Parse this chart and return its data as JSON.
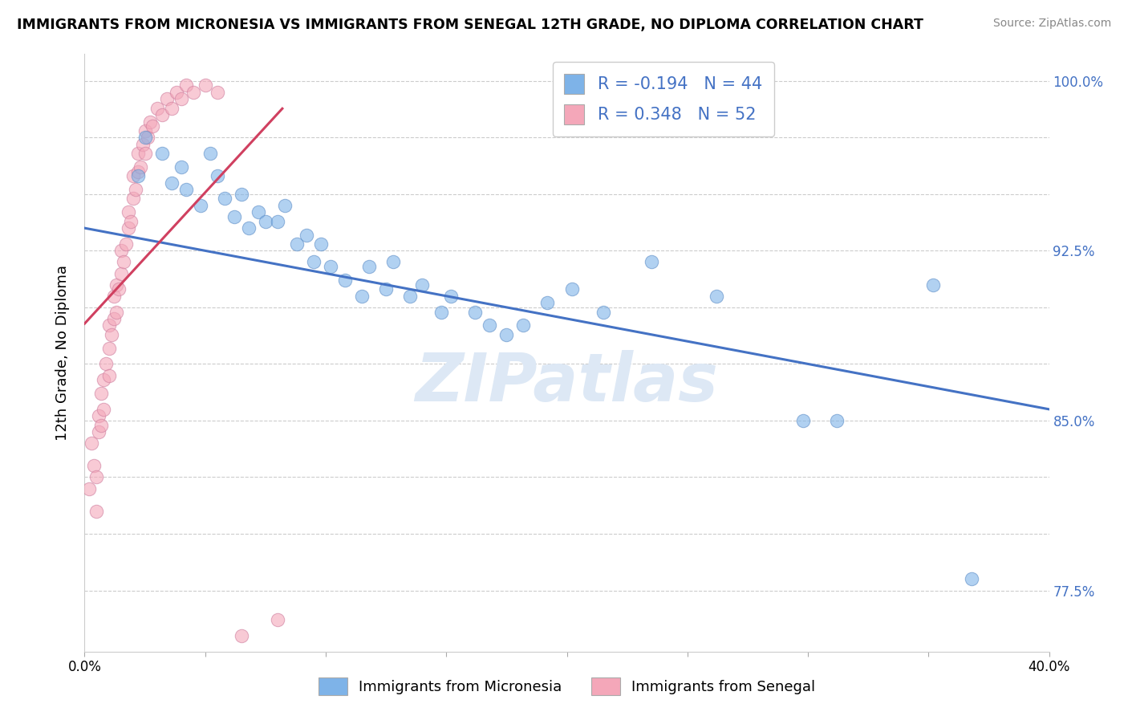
{
  "title": "IMMIGRANTS FROM MICRONESIA VS IMMIGRANTS FROM SENEGAL 12TH GRADE, NO DIPLOMA CORRELATION CHART",
  "source": "Source: ZipAtlas.com",
  "R_micro": -0.194,
  "N_micro": 44,
  "R_senegal": 0.348,
  "N_senegal": 52,
  "color_micro": "#7eb3e8",
  "color_senegal": "#f4a7b9",
  "color_micro_edge": "#6090c8",
  "color_senegal_edge": "#d080a0",
  "color_micro_line": "#4472c4",
  "color_senegal_line": "#d04060",
  "watermark_color": "#dde8f5",
  "xlim": [
    0.0,
    0.4
  ],
  "ylim": [
    0.748,
    1.012
  ],
  "ytick_vals": [
    0.775,
    0.8,
    0.825,
    0.85,
    0.875,
    0.9,
    0.925,
    0.95,
    0.975,
    1.0
  ],
  "ytick_labels": [
    "77.5%",
    "",
    "",
    "85.0%",
    "",
    "",
    "92.5%",
    "",
    "",
    "100.0%"
  ],
  "xtick_vals": [
    0.0,
    0.05,
    0.1,
    0.15,
    0.2,
    0.25,
    0.3,
    0.35,
    0.4
  ],
  "xtick_labels": [
    "0.0%",
    "",
    "",
    "",
    "",
    "",
    "",
    "",
    "40.0%"
  ],
  "micro_x": [
    0.022,
    0.025,
    0.032,
    0.036,
    0.04,
    0.042,
    0.048,
    0.052,
    0.055,
    0.058,
    0.062,
    0.065,
    0.068,
    0.072,
    0.075,
    0.08,
    0.083,
    0.088,
    0.092,
    0.095,
    0.098,
    0.102,
    0.108,
    0.115,
    0.118,
    0.125,
    0.128,
    0.135,
    0.14,
    0.148,
    0.152,
    0.162,
    0.168,
    0.175,
    0.182,
    0.192,
    0.202,
    0.215,
    0.235,
    0.262,
    0.298,
    0.312,
    0.352,
    0.368
  ],
  "micro_y": [
    0.958,
    0.975,
    0.968,
    0.955,
    0.962,
    0.952,
    0.945,
    0.968,
    0.958,
    0.948,
    0.94,
    0.95,
    0.935,
    0.942,
    0.938,
    0.938,
    0.945,
    0.928,
    0.932,
    0.92,
    0.928,
    0.918,
    0.912,
    0.905,
    0.918,
    0.908,
    0.92,
    0.905,
    0.91,
    0.898,
    0.905,
    0.898,
    0.892,
    0.888,
    0.892,
    0.902,
    0.908,
    0.898,
    0.92,
    0.905,
    0.85,
    0.85,
    0.91,
    0.78
  ],
  "senegal_x": [
    0.002,
    0.003,
    0.004,
    0.005,
    0.005,
    0.006,
    0.006,
    0.007,
    0.007,
    0.008,
    0.008,
    0.009,
    0.01,
    0.01,
    0.01,
    0.011,
    0.012,
    0.012,
    0.013,
    0.013,
    0.014,
    0.015,
    0.015,
    0.016,
    0.017,
    0.018,
    0.018,
    0.019,
    0.02,
    0.02,
    0.021,
    0.022,
    0.022,
    0.023,
    0.024,
    0.025,
    0.025,
    0.026,
    0.027,
    0.028,
    0.03,
    0.032,
    0.034,
    0.036,
    0.038,
    0.04,
    0.042,
    0.045,
    0.05,
    0.055,
    0.065,
    0.08
  ],
  "senegal_y": [
    0.82,
    0.84,
    0.83,
    0.81,
    0.825,
    0.845,
    0.852,
    0.848,
    0.862,
    0.855,
    0.868,
    0.875,
    0.87,
    0.882,
    0.892,
    0.888,
    0.895,
    0.905,
    0.898,
    0.91,
    0.908,
    0.915,
    0.925,
    0.92,
    0.928,
    0.935,
    0.942,
    0.938,
    0.948,
    0.958,
    0.952,
    0.96,
    0.968,
    0.962,
    0.972,
    0.968,
    0.978,
    0.975,
    0.982,
    0.98,
    0.988,
    0.985,
    0.992,
    0.988,
    0.995,
    0.992,
    0.998,
    0.995,
    0.998,
    0.995,
    0.755,
    0.762
  ],
  "senegal_line_x0": 0.0,
  "senegal_line_x1": 0.082,
  "micro_line_x0": 0.0,
  "micro_line_x1": 0.4,
  "micro_line_y0": 0.935,
  "micro_line_y1": 0.855
}
